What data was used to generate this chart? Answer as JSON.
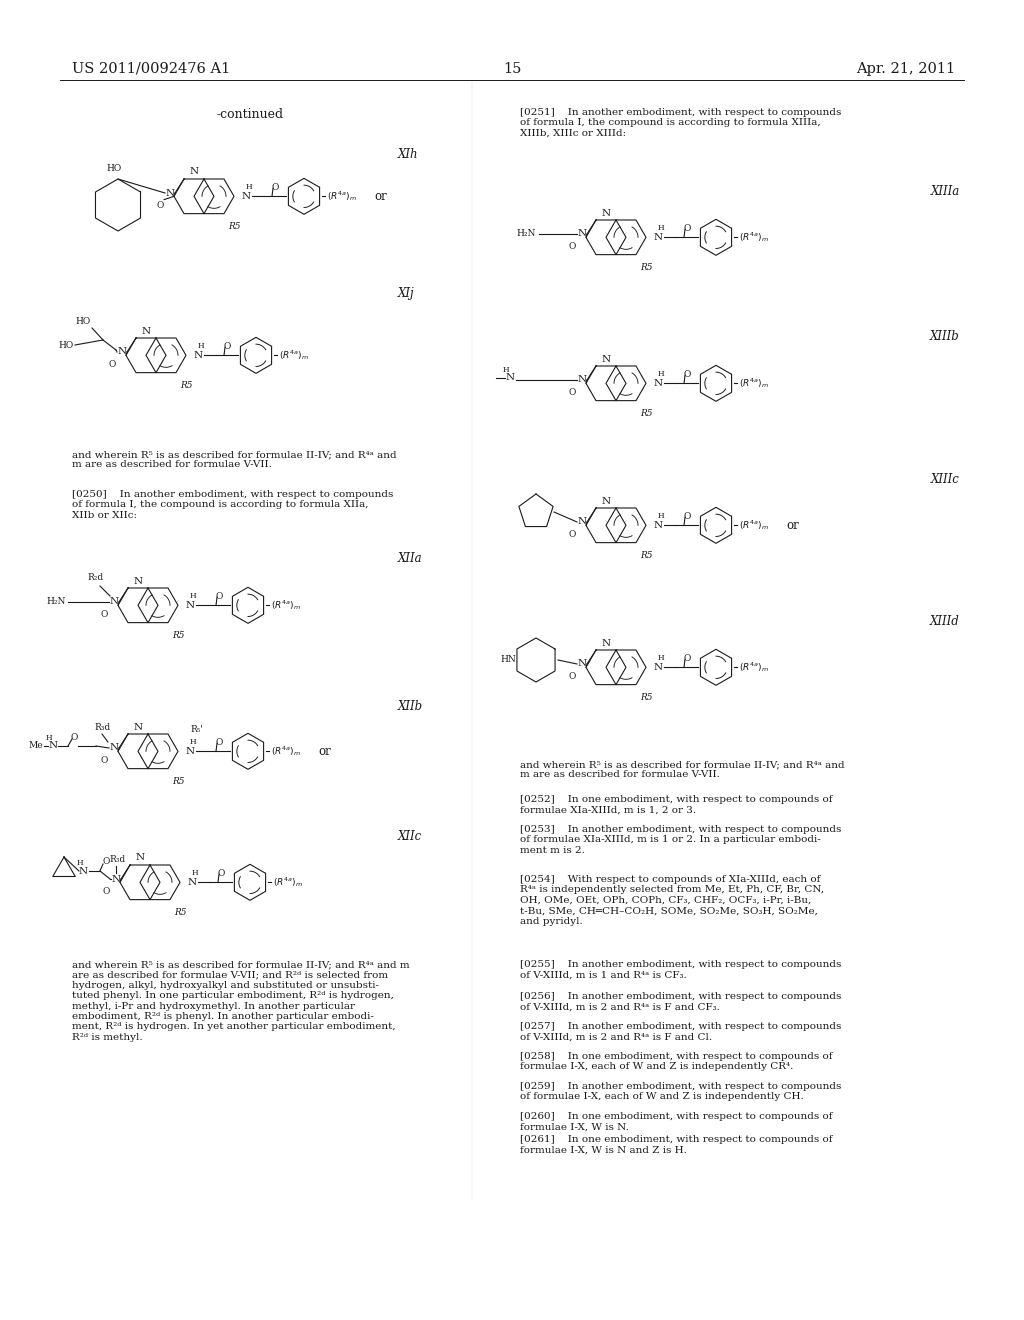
{
  "page_header_left": "US 2011/0092476 A1",
  "page_header_right": "Apr. 21, 2011",
  "page_number": "15",
  "bg_color": "#ffffff",
  "text_color": "#1a1a1a",
  "continued_label": "-continued"
}
